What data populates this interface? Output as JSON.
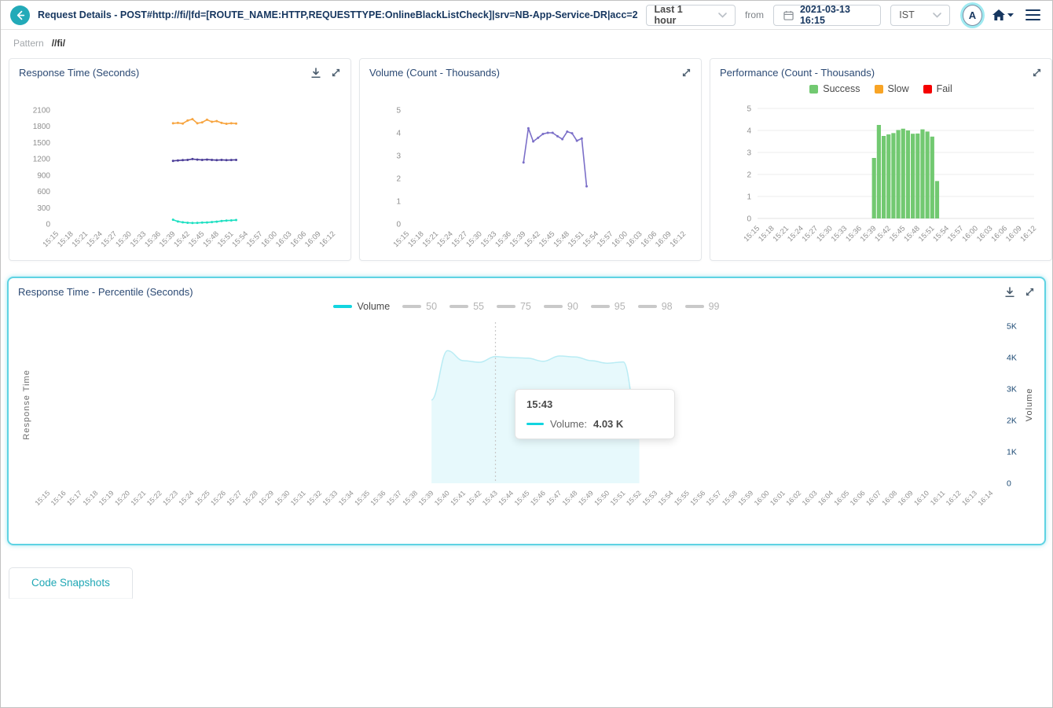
{
  "header": {
    "title": "Request Details - POST#http://fi/|fd=[ROUTE_NAME:HTTP,REQUESTTYPE:OnlineBlackListCheck]|srv=NB-App-Service-DR|acc=2",
    "time_range": "Last 1 hour",
    "from_label": "from",
    "datetime": "2021-03-13 16:15",
    "timezone": "IST",
    "avatar_initial": "A"
  },
  "breadcrumb": {
    "label": "Pattern",
    "value": "//fi/"
  },
  "tabs": {
    "code_snapshots": "Code Snapshots"
  },
  "icons": {
    "back": "arrow-left",
    "calendar": "calendar",
    "chevron": "chevron-down",
    "home": "home",
    "menu": "hamburger",
    "download": "download",
    "expand": "expand-diagonal"
  },
  "colors": {
    "accent_teal": "#23aab8",
    "navy": "#16365f",
    "success_green": "#72c971",
    "slow_orange": "#f8a425",
    "fail_red": "#f50000",
    "volume_cyan": "#12d5e0",
    "card_glow": "#5fd3e3"
  },
  "chart_data": [
    {
      "id": "response_time",
      "type": "line",
      "title": "Response Time (Seconds)",
      "ylim": [
        0,
        2100
      ],
      "ytick_step": 300,
      "grid": false,
      "x_total_minutes": 57,
      "x_tick_labels": [
        "15:15",
        "15:18",
        "15:21",
        "15:24",
        "15:27",
        "15:30",
        "15:33",
        "15:36",
        "15:39",
        "15:42",
        "15:45",
        "15:48",
        "15:51",
        "15:54",
        "15:57",
        "16:00",
        "16:03",
        "16:06",
        "16:09",
        "16:12"
      ],
      "series": [
        {
          "name": "orange-line",
          "color": "#f7a541",
          "start_minute": 24,
          "start_label": "15:39",
          "values": [
            1855,
            1862,
            1851,
            1906,
            1931,
            1856,
            1872,
            1921,
            1882,
            1896,
            1862,
            1846,
            1856,
            1851
          ]
        },
        {
          "name": "purple-line",
          "color": "#4d3f99",
          "start_minute": 24,
          "start_label": "15:39",
          "values": [
            1163,
            1170,
            1176,
            1181,
            1196,
            1186,
            1181,
            1186,
            1181,
            1176,
            1181,
            1176,
            1179,
            1181
          ]
        },
        {
          "name": "teal-line",
          "color": "#1ee0c2",
          "start_minute": 24,
          "start_label": "15:39",
          "values": [
            78,
            46,
            30,
            22,
            18,
            20,
            25,
            28,
            35,
            42,
            55,
            62,
            66,
            72
          ]
        }
      ]
    },
    {
      "id": "volume",
      "type": "line",
      "title": "Volume (Count - Thousands)",
      "ylim": [
        0,
        5
      ],
      "ytick_step": 1,
      "grid": false,
      "x_total_minutes": 57,
      "x_tick_labels": [
        "15:15",
        "15:18",
        "15:21",
        "15:24",
        "15:27",
        "15:30",
        "15:33",
        "15:36",
        "15:39",
        "15:42",
        "15:45",
        "15:48",
        "15:51",
        "15:54",
        "15:57",
        "16:00",
        "16:03",
        "16:06",
        "16:09",
        "16:12"
      ],
      "series": [
        {
          "name": "volume-line",
          "color": "#7b6fc8",
          "start_minute": 24,
          "start_label": "15:39",
          "values": [
            2.7,
            4.2,
            3.62,
            3.78,
            3.95,
            4.0,
            4.0,
            3.85,
            3.72,
            4.05,
            3.98,
            3.65,
            3.75,
            1.65
          ]
        }
      ]
    },
    {
      "id": "performance",
      "type": "bar",
      "title": "Performance (Count - Thousands)",
      "ylim": [
        0,
        5
      ],
      "ytick_step": 1,
      "grid": true,
      "x_total_minutes": 57,
      "x_tick_labels": [
        "15:15",
        "15:18",
        "15:21",
        "15:24",
        "15:27",
        "15:30",
        "15:33",
        "15:36",
        "15:39",
        "15:42",
        "15:45",
        "15:48",
        "15:51",
        "15:54",
        "15:57",
        "16:00",
        "16:03",
        "16:06",
        "16:09",
        "16:12"
      ],
      "legend": [
        {
          "label": "Success",
          "color": "#72c971"
        },
        {
          "label": "Slow",
          "color": "#f8a425"
        },
        {
          "label": "Fail",
          "color": "#f50000"
        }
      ],
      "series": [
        {
          "name": "Success",
          "color": "#72c971",
          "start_minute": 24,
          "start_label": "15:39",
          "values": [
            2.75,
            4.25,
            3.75,
            3.82,
            3.88,
            4.02,
            4.08,
            4.0,
            3.85,
            3.86,
            4.05,
            3.95,
            3.72,
            1.7
          ]
        }
      ]
    },
    {
      "id": "percentile",
      "type": "area",
      "title": "Response Time - Percentile (Seconds)",
      "ylabel_left": "Response Time",
      "ylabel_right": "Volume",
      "ylim_right": [
        0,
        5000
      ],
      "right_ticks": [
        "0",
        "1K",
        "2K",
        "3K",
        "4K",
        "5K"
      ],
      "x_total_minutes": 59,
      "legend": [
        {
          "label": "Volume",
          "color": "#12d5e0",
          "muted": false
        },
        {
          "label": "50",
          "color": "#c9c9c9",
          "muted": true
        },
        {
          "label": "55",
          "color": "#c9c9c9",
          "muted": true
        },
        {
          "label": "75",
          "color": "#c9c9c9",
          "muted": true
        },
        {
          "label": "90",
          "color": "#c9c9c9",
          "muted": true
        },
        {
          "label": "95",
          "color": "#c9c9c9",
          "muted": true
        },
        {
          "label": "98",
          "color": "#c9c9c9",
          "muted": true
        },
        {
          "label": "99",
          "color": "#c9c9c9",
          "muted": true
        }
      ],
      "x_tick_labels": [
        "15:15",
        "15:16",
        "15:17",
        "15:18",
        "15:19",
        "15:20",
        "15:21",
        "15:22",
        "15:23",
        "15:24",
        "15:25",
        "15:26",
        "15:27",
        "15:28",
        "15:29",
        "15:30",
        "15:31",
        "15:32",
        "15:33",
        "15:34",
        "15:35",
        "15:36",
        "15:37",
        "15:38",
        "15:39",
        "15:40",
        "15:41",
        "15:42",
        "15:43",
        "15:44",
        "15:45",
        "15:46",
        "15:47",
        "15:48",
        "15:49",
        "15:50",
        "15:51",
        "15:52",
        "15:53",
        "15:54",
        "15:55",
        "15:56",
        "15:57",
        "15:58",
        "15:59",
        "16:00",
        "16:01",
        "16:02",
        "16:03",
        "16:04",
        "16:05",
        "16:06",
        "16:07",
        "16:08",
        "16:09",
        "16:10",
        "16:11",
        "16:12",
        "16:13",
        "16:14"
      ],
      "series": [
        {
          "name": "Volume",
          "stroke": "#b9ecf4",
          "fill": "#e7f9fc",
          "start_minute": 24,
          "start_label": "15:39",
          "values": [
            2650,
            4220,
            3900,
            3850,
            4030,
            4000,
            3980,
            3880,
            4050,
            4020,
            3900,
            3820,
            3860,
            1600
          ]
        }
      ],
      "crosshair_label": "15:43",
      "tooltip": {
        "time": "15:43",
        "series_label": "Volume:",
        "value": "4.03 K",
        "swatch_color": "#12d5e0"
      }
    }
  ]
}
